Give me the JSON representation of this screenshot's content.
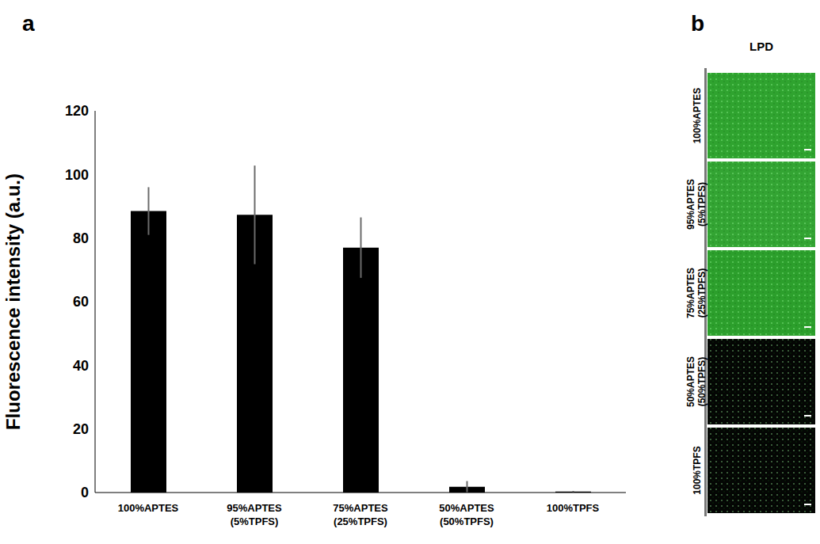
{
  "chart_data": {
    "type": "bar",
    "annotations": [
      "a"
    ],
    "y_label": "Fluorescence intensity (a.u.)",
    "categories": [
      "100%APTES",
      "95%APTES (5%TPFS)",
      "75%APTES (25%TPFS)",
      "50%APTES (50%TPFS)",
      "100%TPFS"
    ],
    "values": [
      88.5,
      87.3,
      77,
      1.8,
      0.3
    ],
    "errors": [
      7.5,
      15.5,
      9.5,
      1.8,
      0.2
    ],
    "color": "#000000",
    "ylim": [
      0,
      120
    ],
    "yticks": [
      0,
      20,
      40,
      60,
      80,
      100,
      120
    ],
    "grid": false
  },
  "image_panel": {
    "annotation": "b",
    "title": "LPD",
    "rows": [
      {
        "label": "100%APTES",
        "color": "#2fa32f"
      },
      {
        "label": "95%APTES (5%TPFS)",
        "color": "#33a433"
      },
      {
        "label": "75%APTES (25%TPFS)",
        "color": "#2c9f2c"
      },
      {
        "label": "50%APTES (50%TPFS)",
        "color": "#040604"
      },
      {
        "label": "100%TPFS",
        "color": "#040604"
      }
    ]
  }
}
